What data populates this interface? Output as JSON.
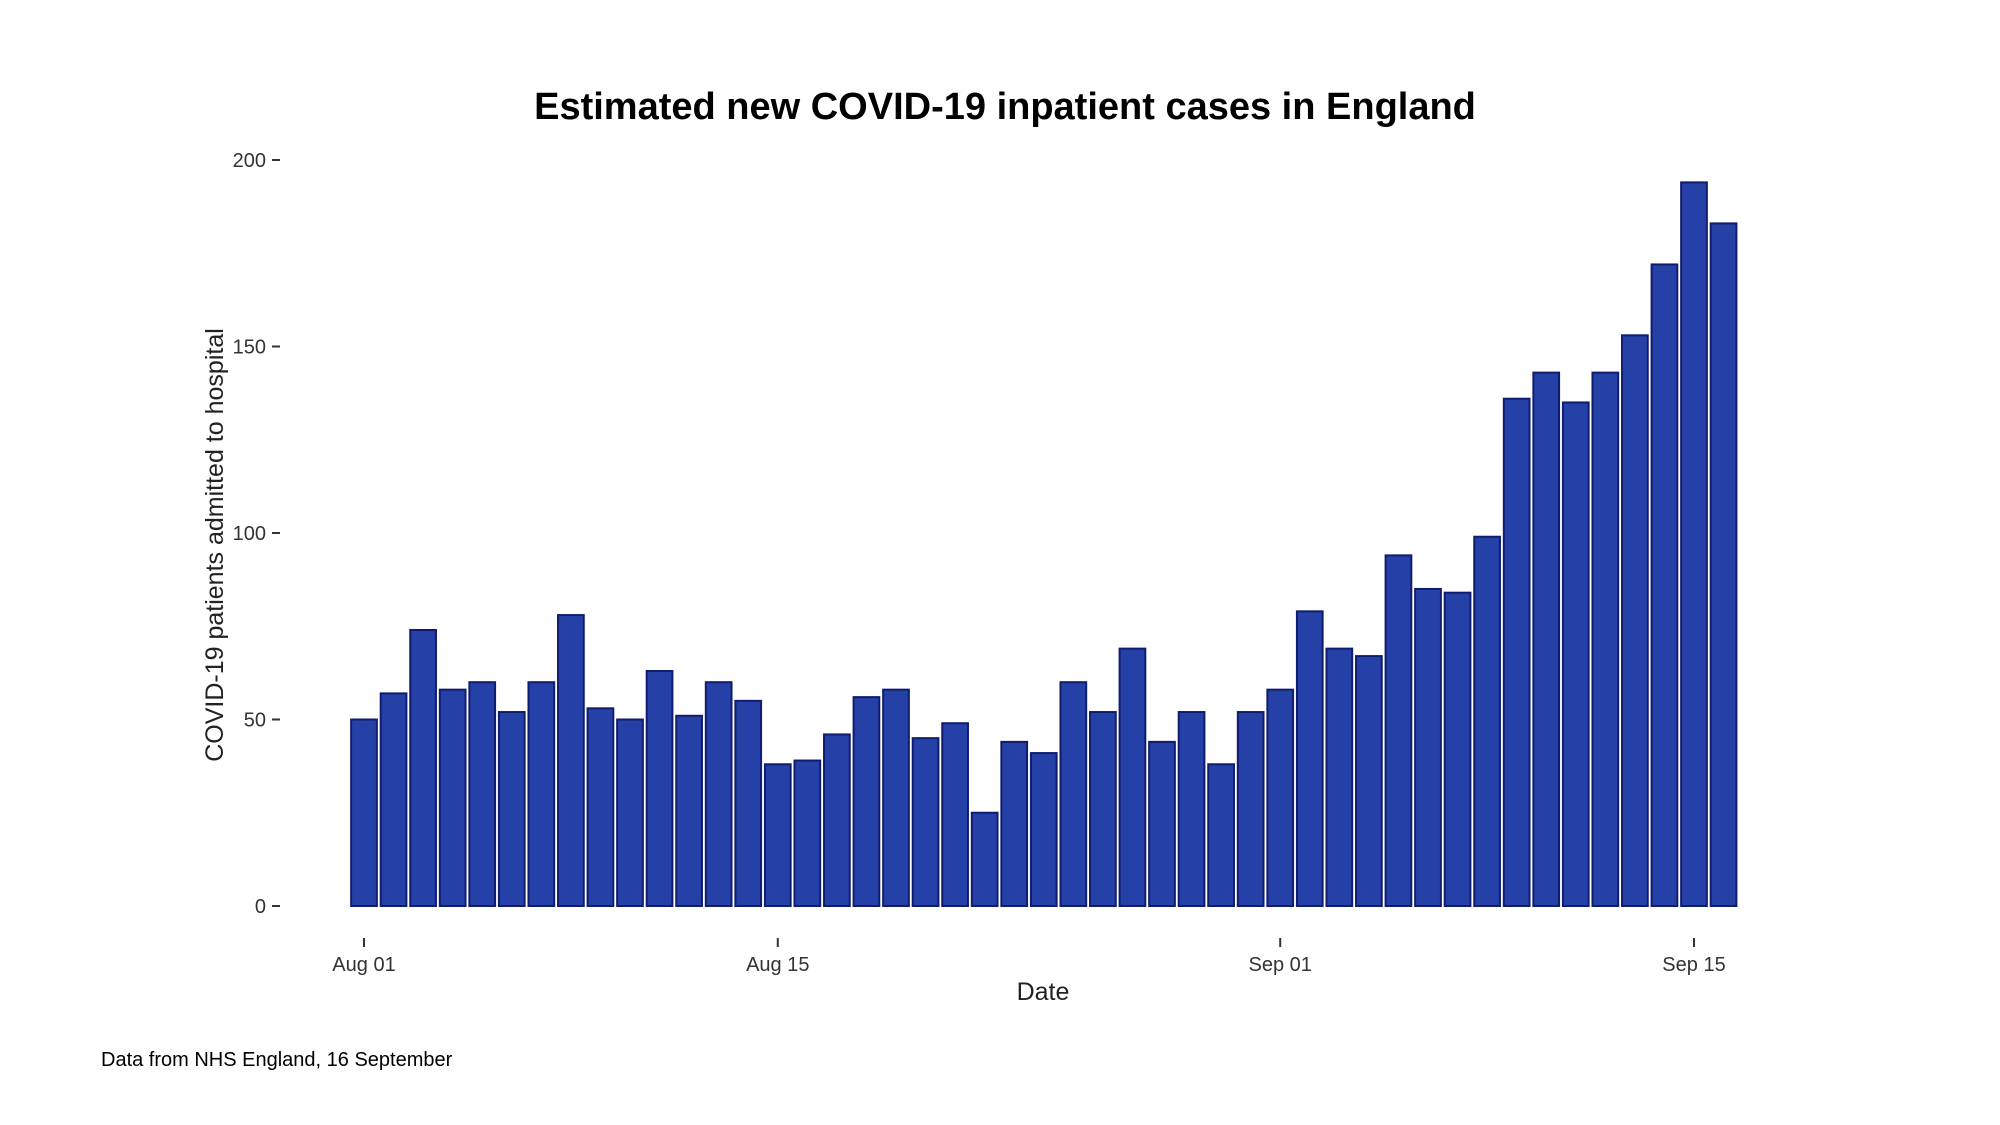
{
  "chart_data": {
    "type": "bar",
    "title": "Estimated new COVID-19 inpatient cases in England",
    "xlabel": "Date",
    "ylabel": "COVID-19 patients admitted to hospital",
    "caption": "Data from NHS England, 16 September",
    "ylim": [
      0,
      200
    ],
    "yticks": [
      0,
      50,
      100,
      150,
      200
    ],
    "yticklabels": [
      "0",
      "50",
      "100",
      "150",
      "200"
    ],
    "xticks": [
      {
        "label": "Aug 01",
        "index": 0
      },
      {
        "label": "Aug 15",
        "index": 14
      },
      {
        "label": "Sep 01",
        "index": 31
      },
      {
        "label": "Sep 15",
        "index": 45
      }
    ],
    "grid": false,
    "colors": {
      "bar_fill": "#2541A8",
      "bar_outline": "#101C6E"
    },
    "categories": [
      "2020-08-01",
      "2020-08-02",
      "2020-08-03",
      "2020-08-04",
      "2020-08-05",
      "2020-08-06",
      "2020-08-07",
      "2020-08-08",
      "2020-08-09",
      "2020-08-10",
      "2020-08-11",
      "2020-08-12",
      "2020-08-13",
      "2020-08-14",
      "2020-08-15",
      "2020-08-16",
      "2020-08-17",
      "2020-08-18",
      "2020-08-19",
      "2020-08-20",
      "2020-08-21",
      "2020-08-22",
      "2020-08-23",
      "2020-08-24",
      "2020-08-25",
      "2020-08-26",
      "2020-08-27",
      "2020-08-28",
      "2020-08-29",
      "2020-08-30",
      "2020-08-31",
      "2020-09-01",
      "2020-09-02",
      "2020-09-03",
      "2020-09-04",
      "2020-09-05",
      "2020-09-06",
      "2020-09-07",
      "2020-09-08",
      "2020-09-09",
      "2020-09-10",
      "2020-09-11",
      "2020-09-12",
      "2020-09-13",
      "2020-09-14",
      "2020-09-15",
      "2020-09-16"
    ],
    "values": [
      50,
      57,
      74,
      58,
      60,
      52,
      60,
      78,
      53,
      50,
      63,
      51,
      60,
      55,
      38,
      39,
      46,
      56,
      58,
      45,
      49,
      25,
      44,
      41,
      60,
      52,
      69,
      44,
      52,
      38,
      52,
      58,
      79,
      69,
      67,
      94,
      85,
      84,
      99,
      136,
      143,
      135,
      143,
      153,
      172,
      194,
      183
    ]
  }
}
